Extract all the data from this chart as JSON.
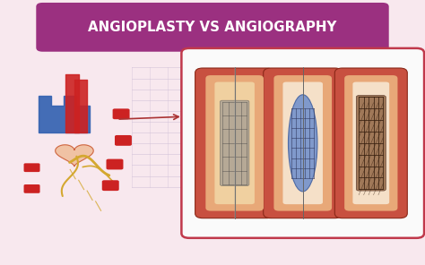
{
  "title": "ANGIOPLASTY VS ANGIOGRAPHY",
  "title_bg_color": "#9b3080",
  "title_text_color": "#ffffff",
  "bg_color": "#f8e8ee",
  "fig_width": 4.74,
  "fig_height": 2.96,
  "panel_bg": "#ffffff",
  "panel_border_color": "#c0394b",
  "artery_outer_color": "#c05040",
  "artery_inner_color": "#e8b090",
  "artery_dark_edge": "#8b2a20",
  "stent_mesh_color": "#7a5040",
  "balloon_fill": "#7090c0",
  "balloon_edge": "#405080",
  "wire_color": "#888888",
  "yellow_vessel": "#d4a830",
  "heart_pink": "#f0c0a0",
  "heart_border": "#cc6040",
  "blue_vessel": "#3060b0",
  "red_vessel": "#cc2222",
  "pointer_color": "#aa3333",
  "mesh_bg_color": "#e8d8e8",
  "mesh_line_color": "#c8b8c8"
}
